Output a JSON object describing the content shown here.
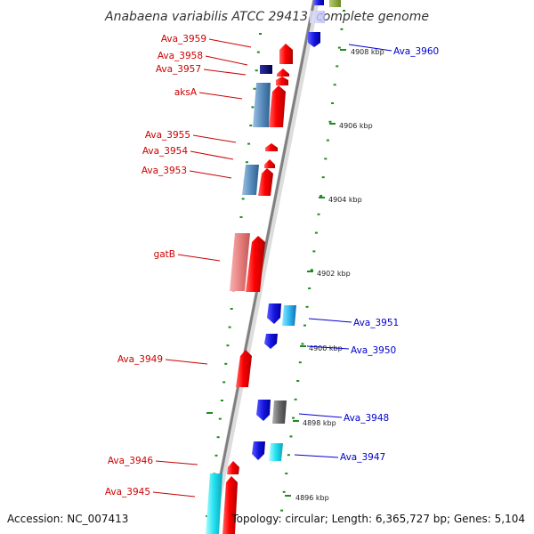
{
  "title": "Anabaena variabilis ATCC 29413, complete genome",
  "footer": {
    "accession": "Accession: NC_007413",
    "topology": "Topology: circular; Length: 6,365,727 bp; Genes: 5,104"
  },
  "colors": {
    "forward_label": "#cc0000",
    "reverse_label": "#0000cc",
    "tick": "#1e8c1e",
    "backbone": "#999999"
  },
  "kbp_ticks": [
    "4908 kbp",
    "4906 kbp",
    "4904 kbp",
    "4902 kbp",
    "4900 kbp",
    "4898 kbp",
    "4896 kbp"
  ],
  "genes_forward": [
    "Ava_3959",
    "Ava_3958",
    "Ava_3957",
    "aksA",
    "Ava_3955",
    "Ava_3954",
    "Ava_3953",
    "gatB",
    "Ava_3949",
    "Ava_3946",
    "Ava_3945"
  ],
  "genes_reverse": [
    "Ava_3960",
    "Ava_3951",
    "Ava_3950",
    "Ava_3948",
    "Ava_3947"
  ]
}
